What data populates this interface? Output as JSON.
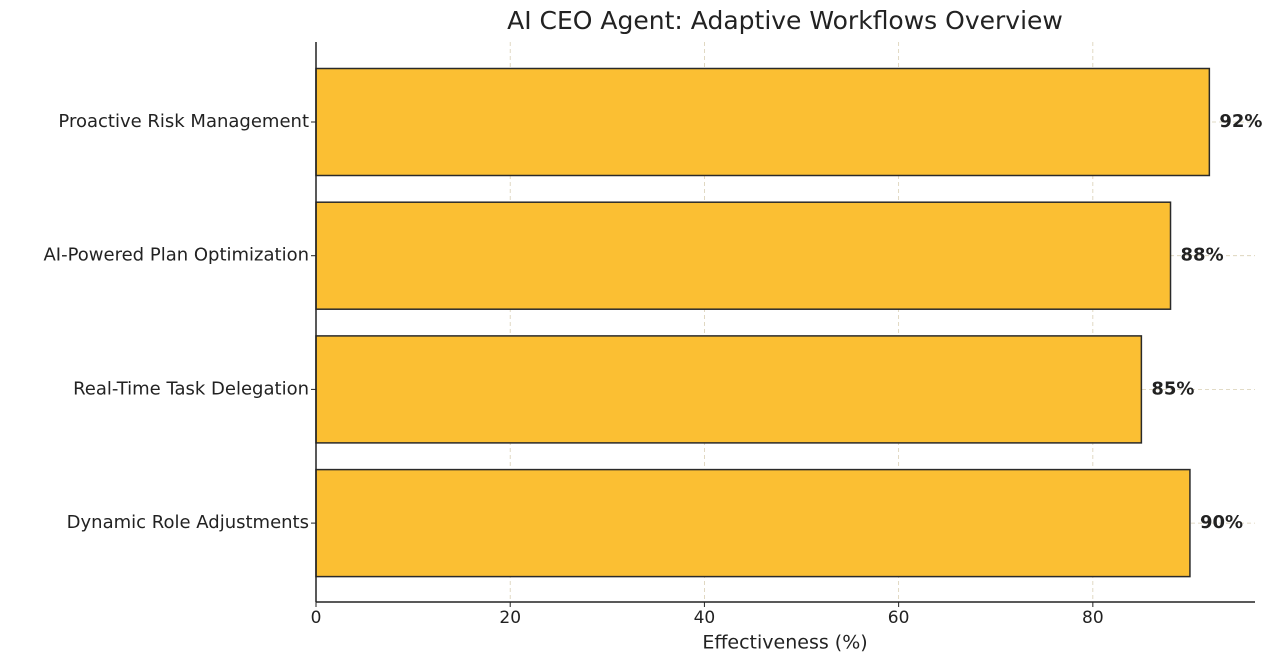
{
  "chart_data": {
    "type": "barh",
    "title": "AI CEO Agent: Adaptive Workflows Overview",
    "xlabel": "Effectiveness (%)",
    "categories": [
      "Proactive Risk Management",
      "AI-Powered Plan Optimization",
      "Real-Time Task Delegation",
      "Dynamic Role Adjustments"
    ],
    "values": [
      92,
      88,
      85,
      90
    ],
    "value_labels": [
      "92%",
      "88%",
      "85%",
      "90%"
    ],
    "color": "#fbbf33",
    "xlim": [
      0,
      96.7
    ],
    "xticks": [
      0,
      20,
      40,
      60,
      80
    ],
    "grid": true
  }
}
